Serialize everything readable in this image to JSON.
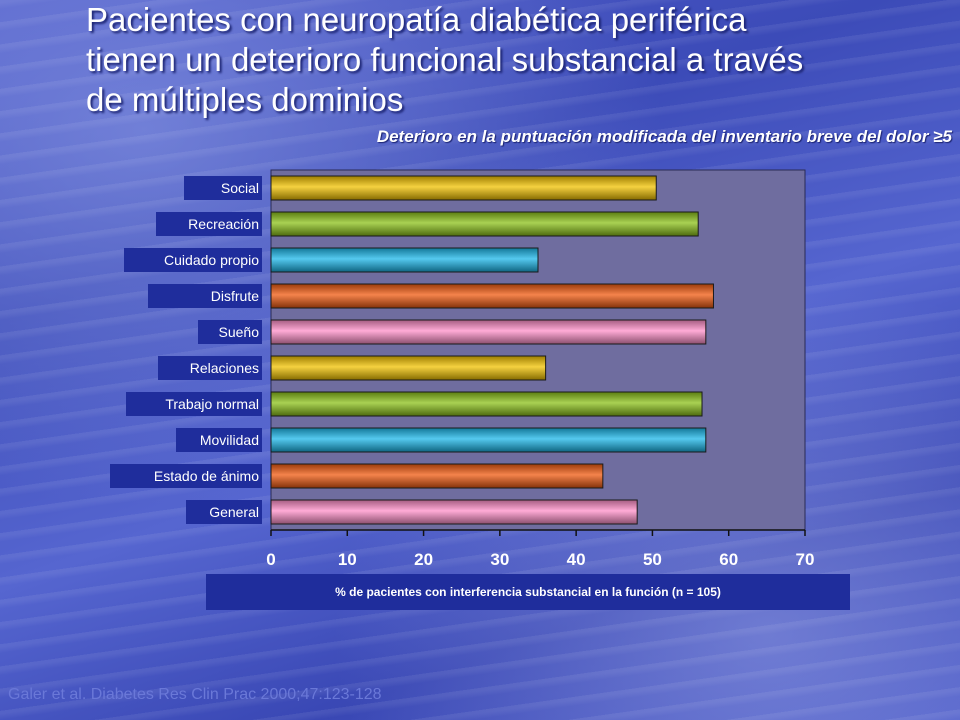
{
  "title_lines": [
    "Pacientes con neuropatía diabética periférica",
    "tienen un deterioro funcional substancial a través",
    "de múltiples dominios"
  ],
  "subtitle": "Deterioro en la puntuación modificada del inventario breve del dolor  ≥5",
  "citation": "Galer et al. Diabetes Res Clin Prac 2000;47:123-128",
  "colors": {
    "yellow": "#f2c200",
    "green": "#8cc21a",
    "cyan": "#1cb7ea",
    "orange": "#f05a10",
    "pink": "#ff8fc8",
    "plot_bg": "#6f6d9f",
    "label_bg": "#1f2d9c"
  },
  "chart_data": {
    "type": "bar",
    "orientation": "horizontal",
    "categories": [
      "Social",
      "Recreación",
      "Cuidado propio",
      "Disfrute",
      "Sueño",
      "Relaciones",
      "Trabajo normal",
      "Movilidad",
      "Estado de ánimo",
      "General"
    ],
    "values": [
      50.5,
      56,
      35,
      58,
      57,
      36,
      56.5,
      57,
      43.5,
      48
    ],
    "bar_colors": [
      "yellow",
      "green",
      "cyan",
      "orange",
      "pink",
      "yellow",
      "green",
      "cyan",
      "orange",
      "pink"
    ],
    "xlabel": "% de pacientes con interferencia substancial en la función (n = 105)",
    "ylabel": "",
    "xlim": [
      0,
      70
    ],
    "xticks": [
      0,
      10,
      20,
      30,
      40,
      50,
      60,
      70
    ],
    "grid": false,
    "legend": "none"
  }
}
